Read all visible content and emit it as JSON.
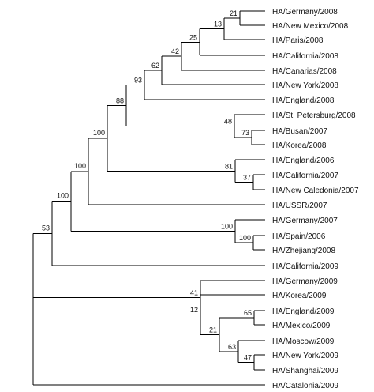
{
  "tree": {
    "line_color": "#000000",
    "text_color": "#111111",
    "leaves": [
      "HA/Germany/2008",
      "HA/New Mexico/2008",
      "HA/Paris/2008",
      "HA/California/2008",
      "HA/Canarias/2008",
      "HA/New York/2008",
      "HA/England/2008",
      "HA/St. Petersburg/2008",
      "HA/Busan/2007",
      "HA/Korea/2008",
      "HA/England/2006",
      "HA/California/2007",
      "HA/New Caledonia/2007",
      "HA/USSR/2007",
      "HA/Germany/2007",
      "HA/Spain/2006",
      "HA/Zhejiang/2008",
      "HA/California/2009",
      "HA/Germany/2009",
      "HA/Korea/2009",
      "HA/England/2009",
      "HA/Mexico/2009",
      "HA/Moscow/2009",
      "HA/New York/2009",
      "HA/Shanghai/2009",
      "HA/Catalonia/2009"
    ],
    "support_values": [
      "21",
      "13",
      "25",
      "42",
      "62",
      "93",
      "88",
      "48",
      "73",
      "100",
      "81",
      "37",
      "100",
      "100",
      "100",
      "100",
      "53",
      "65",
      "47",
      "63",
      "21",
      "12",
      "41"
    ]
  }
}
